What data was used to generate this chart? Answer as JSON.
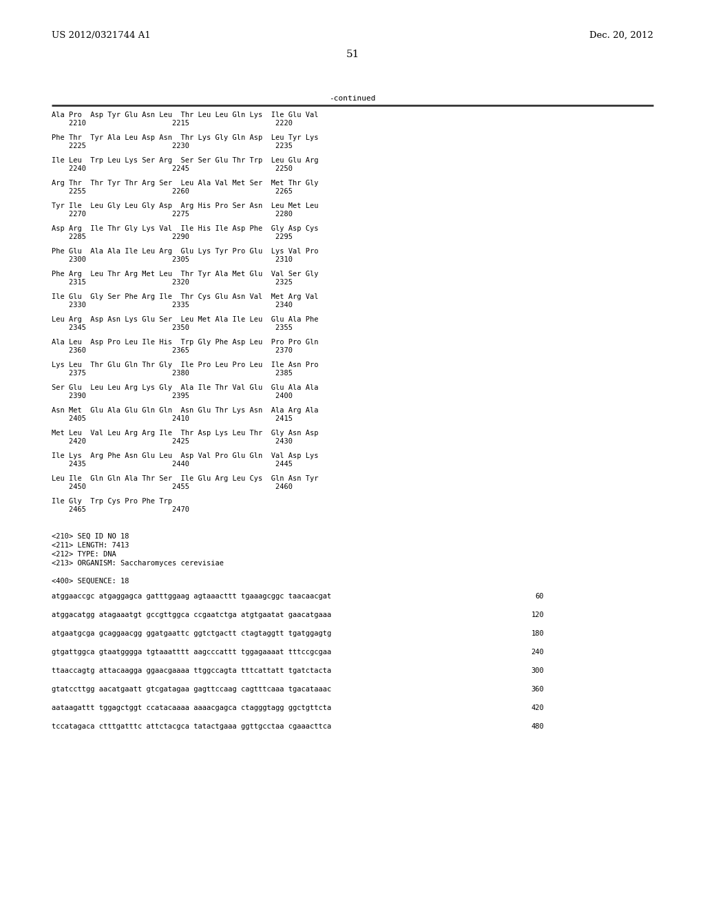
{
  "header_left": "US 2012/0321744 A1",
  "header_right": "Dec. 20, 2012",
  "page_number": "51",
  "continued_label": "-continued",
  "background_color": "#ffffff",
  "text_color": "#000000",
  "font_size_header": 9.5,
  "font_size_page_num": 11.0,
  "font_size_mono": 7.5,
  "amino_lines": [
    [
      "Ala Pro  Asp Tyr Glu Asn Leu  Thr Leu Leu Gln Lys  Ile Glu Val",
      "    2210                    2215                    2220"
    ],
    [
      "Phe Thr  Tyr Ala Leu Asp Asn  Thr Lys Gly Gln Asp  Leu Tyr Lys",
      "    2225                    2230                    2235"
    ],
    [
      "Ile Leu  Trp Leu Lys Ser Arg  Ser Ser Glu Thr Trp  Leu Glu Arg",
      "    2240                    2245                    2250"
    ],
    [
      "Arg Thr  Thr Tyr Thr Arg Ser  Leu Ala Val Met Ser  Met Thr Gly",
      "    2255                    2260                    2265"
    ],
    [
      "Tyr Ile  Leu Gly Leu Gly Asp  Arg His Pro Ser Asn  Leu Met Leu",
      "    2270                    2275                    2280"
    ],
    [
      "Asp Arg  Ile Thr Gly Lys Val  Ile His Ile Asp Phe  Gly Asp Cys",
      "    2285                    2290                    2295"
    ],
    [
      "Phe Glu  Ala Ala Ile Leu Arg  Glu Lys Tyr Pro Glu  Lys Val Pro",
      "    2300                    2305                    2310"
    ],
    [
      "Phe Arg  Leu Thr Arg Met Leu  Thr Tyr Ala Met Glu  Val Ser Gly",
      "    2315                    2320                    2325"
    ],
    [
      "Ile Glu  Gly Ser Phe Arg Ile  Thr Cys Glu Asn Val  Met Arg Val",
      "    2330                    2335                    2340"
    ],
    [
      "Leu Arg  Asp Asn Lys Glu Ser  Leu Met Ala Ile Leu  Glu Ala Phe",
      "    2345                    2350                    2355"
    ],
    [
      "Ala Leu  Asp Pro Leu Ile His  Trp Gly Phe Asp Leu  Pro Pro Gln",
      "    2360                    2365                    2370"
    ],
    [
      "Lys Leu  Thr Glu Gln Thr Gly  Ile Pro Leu Pro Leu  Ile Asn Pro",
      "    2375                    2380                    2385"
    ],
    [
      "Ser Glu  Leu Leu Arg Lys Gly  Ala Ile Thr Val Glu  Glu Ala Ala",
      "    2390                    2395                    2400"
    ],
    [
      "Asn Met  Glu Ala Glu Gln Gln  Asn Glu Thr Lys Asn  Ala Arg Ala",
      "    2405                    2410                    2415"
    ],
    [
      "Met Leu  Val Leu Arg Arg Ile  Thr Asp Lys Leu Thr  Gly Asn Asp",
      "    2420                    2425                    2430"
    ],
    [
      "Ile Lys  Arg Phe Asn Glu Leu  Asp Val Pro Glu Gln  Val Asp Lys",
      "    2435                    2440                    2445"
    ],
    [
      "Leu Ile  Gln Gln Ala Thr Ser  Ile Glu Arg Leu Cys  Gln Asn Tyr",
      "    2450                    2455                    2460"
    ],
    [
      "Ile Gly  Trp Cys Pro Phe Trp",
      "    2465                    2470"
    ]
  ],
  "metadata_lines": [
    "<210> SEQ ID NO 18",
    "<211> LENGTH: 7413",
    "<212> TYPE: DNA",
    "<213> ORGANISM: Saccharomyces cerevisiae"
  ],
  "sequence_label": "<400> SEQUENCE: 18",
  "dna_lines": [
    [
      "atggaaccgc atgaggagca gatttggaag agtaaacttt tgaaagcggc taacaacgat",
      "60"
    ],
    [
      "atggacatgg atagaaatgt gccgttggca ccgaatctga atgtgaatat gaacatgaaa",
      "120"
    ],
    [
      "atgaatgcga gcaggaacgg ggatgaattc ggtctgactt ctagtaggtt tgatggagtg",
      "180"
    ],
    [
      "gtgattggca gtaatgggga tgtaaatttt aagcccattt tggagaaaat tttccgcgaa",
      "240"
    ],
    [
      "ttaaccagtg attacaagga ggaacgaaaa ttggccagta tttcattatt tgatctacta",
      "300"
    ],
    [
      "gtatccttgg aacatgaatt gtcgatagaa gagttccaag cagtttcaaa tgacataaac",
      "360"
    ],
    [
      "aataagattt tggagctggt ccatacaaaa aaaacgagca ctagggtagg ggctgttcta",
      "420"
    ],
    [
      "tccatagaca ctttgatttc attctacgca tatactgaaa ggttgcctaa cgaaacttca",
      "480"
    ]
  ]
}
